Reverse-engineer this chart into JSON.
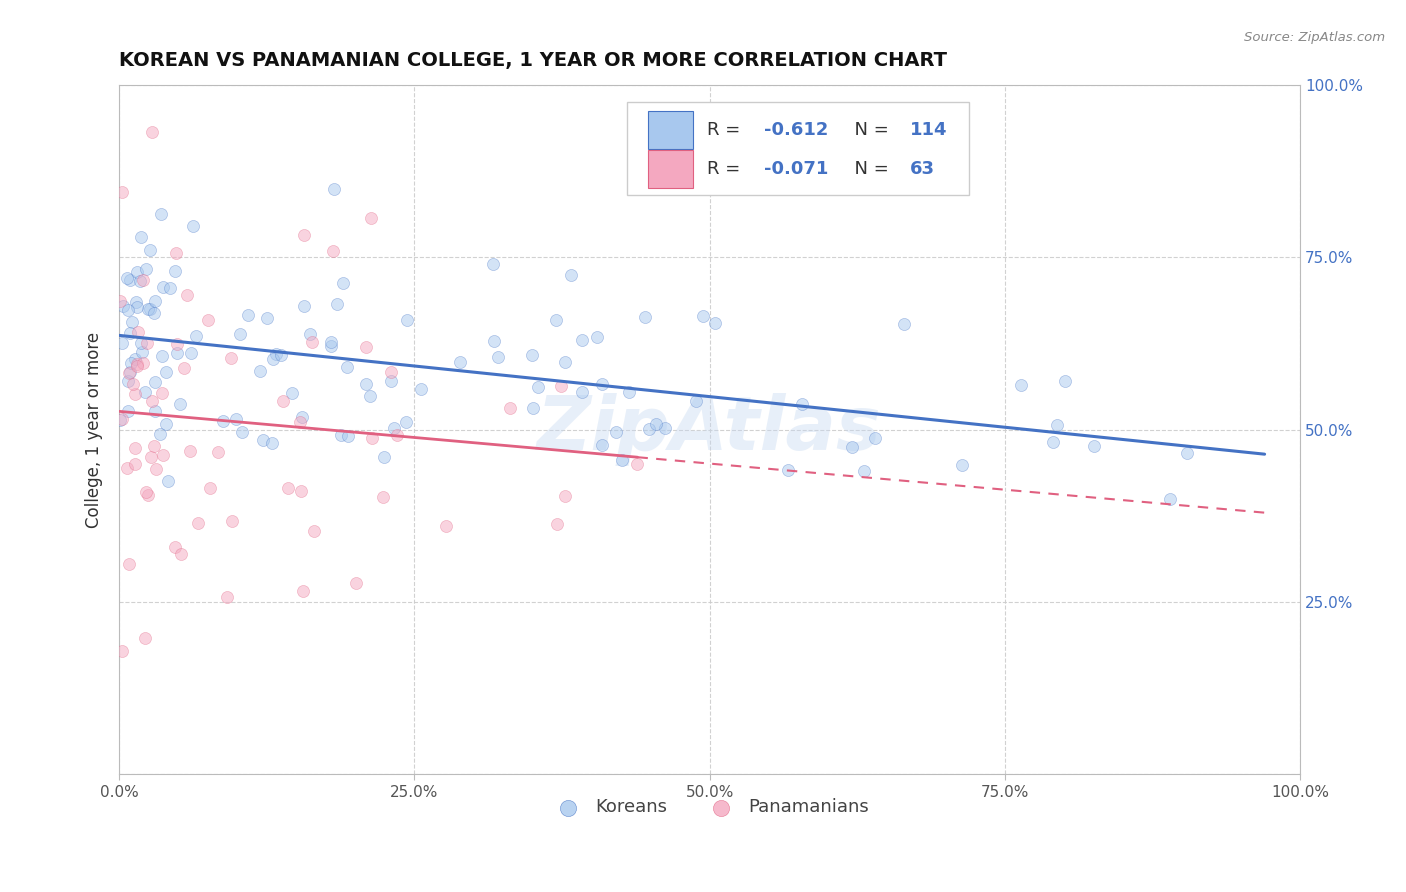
{
  "title": "KOREAN VS PANAMANIAN COLLEGE, 1 YEAR OR MORE CORRELATION CHART",
  "source_text": "Source: ZipAtlas.com",
  "ylabel": "College, 1 year or more",
  "xlim": [
    0.0,
    1.0
  ],
  "ylim": [
    0.0,
    1.0
  ],
  "xticks": [
    0.0,
    0.25,
    0.5,
    0.75,
    1.0
  ],
  "yticks": [
    0.0,
    0.25,
    0.5,
    0.75,
    1.0
  ],
  "xtick_labels": [
    "0.0%",
    "25.0%",
    "50.0%",
    "75.0%",
    "100.0%"
  ],
  "right_ytick_labels": [
    "",
    "25.0%",
    "50.0%",
    "75.0%",
    "100.0%"
  ],
  "korean_R": -0.612,
  "korean_N": 114,
  "panamanian_R": -0.071,
  "panamanian_N": 63,
  "korean_color": "#A8C8EE",
  "panamanian_color": "#F4A8C0",
  "korean_line_color": "#4472C4",
  "panamanian_line_color": "#E06080",
  "legend_label_korean": "Koreans",
  "legend_label_panamanian": "Panamanians",
  "background_color": "#FFFFFF",
  "grid_color": "#CCCCCC",
  "watermark": "ZipAtlas",
  "title_fontsize": 14,
  "axis_label_fontsize": 12,
  "tick_fontsize": 11,
  "scatter_alpha": 0.5,
  "scatter_size": 75
}
